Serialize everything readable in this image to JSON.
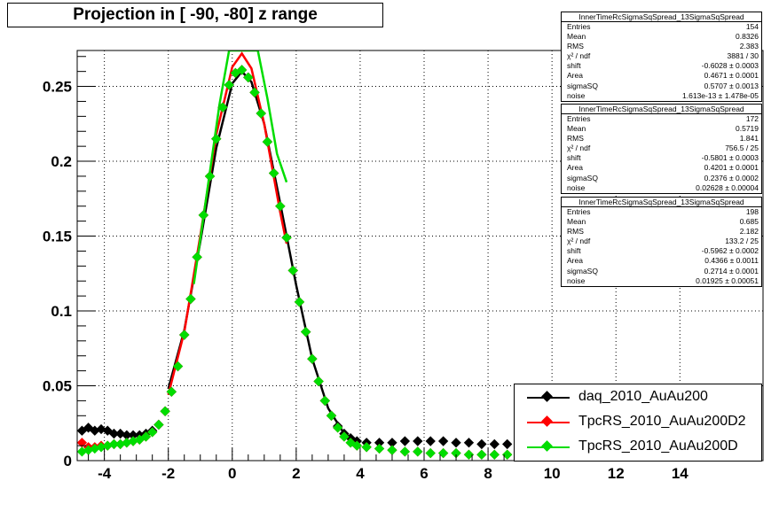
{
  "chart_data": {
    "type": "scatter",
    "title": "Projection in [ -90, -80] z range",
    "xlim": [
      -4.85,
      16.6
    ],
    "ylim": [
      0,
      0.274
    ],
    "x_ticks": [
      -4,
      -2,
      0,
      2,
      4,
      6,
      8,
      10,
      12,
      14
    ],
    "y_ticks": [
      0,
      0.05,
      0.1,
      0.15,
      0.2,
      0.25
    ],
    "y_tick_labels": [
      "0",
      "0.05",
      "0.1",
      "0.15",
      "0.2",
      "0.25"
    ],
    "grid": true,
    "legend_position": "bottom-right",
    "series": [
      {
        "name": "daq_2010_AuAu200",
        "color": "#000000",
        "points": [
          [
            -4.7,
            0.02
          ],
          [
            -4.5,
            0.022
          ],
          [
            -4.3,
            0.02
          ],
          [
            -4.1,
            0.021
          ],
          [
            -3.9,
            0.02
          ],
          [
            -3.7,
            0.018
          ],
          [
            -3.5,
            0.018
          ],
          [
            -3.3,
            0.017
          ],
          [
            -3.1,
            0.017
          ],
          [
            -2.9,
            0.017
          ],
          [
            -2.7,
            0.018
          ],
          [
            -2.5,
            0.02
          ],
          [
            -2.3,
            0.024
          ],
          [
            -2.1,
            0.033
          ],
          [
            -1.9,
            0.046
          ],
          [
            -1.7,
            0.063
          ],
          [
            -1.5,
            0.084
          ],
          [
            -1.3,
            0.108
          ],
          [
            -1.1,
            0.136
          ],
          [
            -0.9,
            0.164
          ],
          [
            -0.7,
            0.19
          ],
          [
            -0.5,
            0.215
          ],
          [
            -0.3,
            0.236
          ],
          [
            -0.1,
            0.251
          ],
          [
            0.1,
            0.259
          ],
          [
            0.3,
            0.261
          ],
          [
            0.5,
            0.256
          ],
          [
            0.7,
            0.246
          ],
          [
            0.9,
            0.232
          ],
          [
            1.1,
            0.213
          ],
          [
            1.3,
            0.192
          ],
          [
            1.5,
            0.17
          ],
          [
            1.7,
            0.149
          ],
          [
            1.9,
            0.127
          ],
          [
            2.1,
            0.106
          ],
          [
            2.3,
            0.086
          ],
          [
            2.5,
            0.068
          ],
          [
            2.7,
            0.053
          ],
          [
            2.9,
            0.04
          ],
          [
            3.1,
            0.03
          ],
          [
            3.3,
            0.023
          ],
          [
            3.5,
            0.018
          ],
          [
            3.7,
            0.015
          ],
          [
            3.9,
            0.013
          ],
          [
            4.2,
            0.012
          ],
          [
            4.6,
            0.012
          ],
          [
            5.0,
            0.012
          ],
          [
            5.4,
            0.013
          ],
          [
            5.8,
            0.013
          ],
          [
            6.2,
            0.013
          ],
          [
            6.6,
            0.013
          ],
          [
            7.0,
            0.012
          ],
          [
            7.4,
            0.012
          ],
          [
            7.8,
            0.011
          ],
          [
            8.2,
            0.011
          ],
          [
            8.6,
            0.011
          ],
          [
            9.0,
            0.01
          ]
        ],
        "fit": [
          [
            -2.0,
            0.048
          ],
          [
            -1.5,
            0.087
          ],
          [
            -1.0,
            0.146
          ],
          [
            -0.5,
            0.209
          ],
          [
            0.0,
            0.252
          ],
          [
            0.3,
            0.26
          ],
          [
            0.6,
            0.253
          ],
          [
            1.0,
            0.225
          ],
          [
            1.5,
            0.172
          ],
          [
            2.0,
            0.117
          ],
          [
            2.5,
            0.068
          ],
          [
            3.0,
            0.035
          ],
          [
            3.5,
            0.018
          ],
          [
            4.0,
            0.012
          ]
        ]
      },
      {
        "name": "TpcRS_2010_AuAu200D2",
        "color": "#ff0000",
        "points": [
          [
            -4.7,
            0.012
          ],
          [
            -4.5,
            0.009
          ],
          [
            -4.3,
            0.009
          ],
          [
            -4.1,
            0.01
          ],
          [
            -3.9,
            0.01
          ],
          [
            -3.7,
            0.011
          ],
          [
            -3.5,
            0.011
          ],
          [
            -3.3,
            0.012
          ],
          [
            -3.1,
            0.013
          ],
          [
            -2.9,
            0.014
          ],
          [
            -2.7,
            0.016
          ],
          [
            -2.5,
            0.019
          ],
          [
            -2.3,
            0.024
          ],
          [
            -2.1,
            0.033
          ],
          [
            -1.9,
            0.046
          ],
          [
            -1.7,
            0.063
          ],
          [
            -1.5,
            0.084
          ],
          [
            -1.3,
            0.108
          ],
          [
            -1.1,
            0.136
          ],
          [
            -0.9,
            0.164
          ],
          [
            -0.7,
            0.19
          ],
          [
            -0.5,
            0.215
          ],
          [
            -0.3,
            0.236
          ],
          [
            -0.1,
            0.251
          ],
          [
            0.1,
            0.259
          ],
          [
            0.3,
            0.261
          ],
          [
            0.5,
            0.256
          ],
          [
            0.7,
            0.246
          ],
          [
            0.9,
            0.232
          ],
          [
            1.1,
            0.213
          ],
          [
            1.3,
            0.192
          ],
          [
            1.5,
            0.17
          ],
          [
            1.7,
            0.149
          ],
          [
            1.9,
            0.127
          ],
          [
            2.1,
            0.106
          ],
          [
            2.3,
            0.086
          ],
          [
            2.5,
            0.068
          ],
          [
            2.7,
            0.053
          ],
          [
            2.9,
            0.04
          ],
          [
            3.1,
            0.03
          ],
          [
            3.3,
            0.022
          ],
          [
            3.5,
            0.016
          ],
          [
            3.7,
            0.012
          ],
          [
            3.9,
            0.01
          ],
          [
            4.2,
            0.009
          ],
          [
            4.6,
            0.008
          ],
          [
            5.0,
            0.007
          ],
          [
            5.4,
            0.006
          ],
          [
            5.8,
            0.006
          ],
          [
            6.2,
            0.005
          ],
          [
            6.6,
            0.005
          ],
          [
            7.0,
            0.005
          ],
          [
            7.4,
            0.004
          ],
          [
            7.8,
            0.004
          ],
          [
            8.2,
            0.004
          ],
          [
            8.6,
            0.004
          ],
          [
            9.0,
            0.004
          ]
        ],
        "fit": [
          [
            -2.0,
            0.044
          ],
          [
            -1.5,
            0.086
          ],
          [
            -1.0,
            0.15
          ],
          [
            -0.5,
            0.218
          ],
          [
            0.0,
            0.263
          ],
          [
            0.3,
            0.272
          ],
          [
            0.6,
            0.262
          ],
          [
            1.0,
            0.225
          ],
          [
            1.5,
            0.166
          ],
          [
            1.7,
            0.145
          ]
        ]
      },
      {
        "name": "TpcRS_2010_AuAu200D",
        "color": "#00dd00",
        "points": [
          [
            -4.7,
            0.006
          ],
          [
            -4.5,
            0.007
          ],
          [
            -4.3,
            0.008
          ],
          [
            -4.1,
            0.009
          ],
          [
            -3.9,
            0.01
          ],
          [
            -3.7,
            0.011
          ],
          [
            -3.5,
            0.011
          ],
          [
            -3.3,
            0.012
          ],
          [
            -3.1,
            0.013
          ],
          [
            -2.9,
            0.014
          ],
          [
            -2.7,
            0.016
          ],
          [
            -2.5,
            0.019
          ],
          [
            -2.3,
            0.024
          ],
          [
            -2.1,
            0.033
          ],
          [
            -1.9,
            0.046
          ],
          [
            -1.7,
            0.063
          ],
          [
            -1.5,
            0.084
          ],
          [
            -1.3,
            0.108
          ],
          [
            -1.1,
            0.136
          ],
          [
            -0.9,
            0.164
          ],
          [
            -0.7,
            0.19
          ],
          [
            -0.5,
            0.215
          ],
          [
            -0.3,
            0.236
          ],
          [
            -0.1,
            0.251
          ],
          [
            0.1,
            0.259
          ],
          [
            0.3,
            0.261
          ],
          [
            0.5,
            0.256
          ],
          [
            0.7,
            0.246
          ],
          [
            0.9,
            0.232
          ],
          [
            1.1,
            0.213
          ],
          [
            1.3,
            0.192
          ],
          [
            1.5,
            0.17
          ],
          [
            1.7,
            0.149
          ],
          [
            1.9,
            0.127
          ],
          [
            2.1,
            0.106
          ],
          [
            2.3,
            0.086
          ],
          [
            2.5,
            0.068
          ],
          [
            2.7,
            0.053
          ],
          [
            2.9,
            0.04
          ],
          [
            3.1,
            0.03
          ],
          [
            3.3,
            0.022
          ],
          [
            3.5,
            0.016
          ],
          [
            3.7,
            0.012
          ],
          [
            3.9,
            0.01
          ],
          [
            4.2,
            0.009
          ],
          [
            4.6,
            0.008
          ],
          [
            5.0,
            0.007
          ],
          [
            5.4,
            0.006
          ],
          [
            5.8,
            0.006
          ],
          [
            6.2,
            0.005
          ],
          [
            6.6,
            0.005
          ],
          [
            7.0,
            0.005
          ],
          [
            7.4,
            0.004
          ],
          [
            7.8,
            0.004
          ],
          [
            8.2,
            0.004
          ],
          [
            8.6,
            0.004
          ],
          [
            9.0,
            0.004
          ]
        ],
        "fit": [
          [
            -1.2,
            0.118
          ],
          [
            -0.8,
            0.178
          ],
          [
            -0.4,
            0.238
          ],
          [
            -0.1,
            0.274
          ],
          [
            0.8,
            0.274
          ],
          [
            1.1,
            0.242
          ],
          [
            1.4,
            0.205
          ],
          [
            1.7,
            0.186
          ]
        ]
      }
    ]
  },
  "stats": [
    {
      "header": "InnerTimeRcSigmaSqSpread_13SigmaSqSpread",
      "rows": [
        {
          "label": "Entries",
          "value": "154"
        },
        {
          "label": "Mean",
          "value": "0.8326"
        },
        {
          "label": "RMS",
          "value": "2.383"
        },
        {
          "label": "χ² / ndf",
          "value": "3881 / 30"
        },
        {
          "label": "shift",
          "value": "-0.6028 ± 0.0003"
        },
        {
          "label": "Area",
          "value": "0.4671 ± 0.0001"
        },
        {
          "label": "sigmaSQ",
          "value": "0.5707 ± 0.0013"
        },
        {
          "label": "noise",
          "value": "1.613e-13 ± 1.478e-05"
        }
      ]
    },
    {
      "header": "InnerTimeRcSigmaSqSpread_13SigmaSqSpread",
      "rows": [
        {
          "label": "Entries",
          "value": "172"
        },
        {
          "label": "Mean",
          "value": "0.5719"
        },
        {
          "label": "RMS",
          "value": "1.841"
        },
        {
          "label": "χ² / ndf",
          "value": "756.5 / 25"
        },
        {
          "label": "shift",
          "value": "-0.5801 ± 0.0003"
        },
        {
          "label": "Area",
          "value": "0.4201 ± 0.0001"
        },
        {
          "label": "sigmaSQ",
          "value": "0.2376 ± 0.0002"
        },
        {
          "label": "noise",
          "value": "0.02628 ± 0.00004"
        }
      ]
    },
    {
      "header": "InnerTimeRcSigmaSqSpread_13SigmaSqSpread",
      "rows": [
        {
          "label": "Entries",
          "value": "198"
        },
        {
          "label": "Mean",
          "value": "0.685"
        },
        {
          "label": "RMS",
          "value": "2.182"
        },
        {
          "label": "χ² / ndf",
          "value": "133.2 / 25"
        },
        {
          "label": "shift",
          "value": "-0.5962 ± 0.0002"
        },
        {
          "label": "Area",
          "value": "0.4366 ± 0.0011"
        },
        {
          "label": "sigmaSQ",
          "value": "0.2714 ± 0.0001"
        },
        {
          "label": "noise",
          "value": "0.01925 ± 0.00051"
        }
      ]
    }
  ]
}
